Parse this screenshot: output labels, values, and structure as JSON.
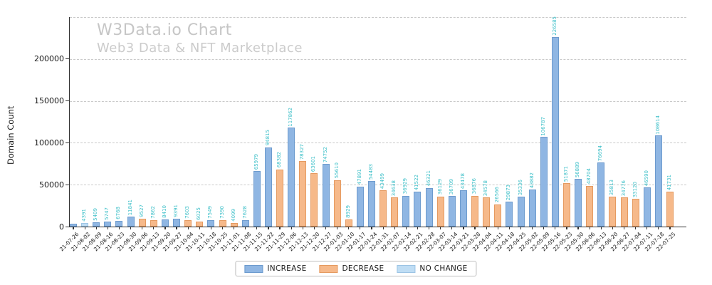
{
  "watermark": {
    "title": "W3Data.io Chart",
    "subtitle": "Web3 Data & NFT Marketplace"
  },
  "chart_data": {
    "type": "bar",
    "title": "W3Data.io Chart",
    "subtitle": "Web3 Data & NFT Marketplace",
    "xlabel": "",
    "ylabel": "Domain Count",
    "yticks": [
      0,
      50000,
      100000,
      150000,
      200000
    ],
    "ylim": [
      0,
      250000
    ],
    "grid": {
      "axis": "y",
      "style": "dashed",
      "color": "#c9c9c9"
    },
    "value_label_color": "#3fc0c9",
    "legend": {
      "position": "lower center",
      "entries": [
        {
          "label": "INCREASE",
          "key": "increase",
          "fill": "#8fb6e3",
          "edge": "#6d9bce"
        },
        {
          "label": "DECREASE",
          "key": "decrease",
          "fill": "#f6b98a",
          "edge": "#e59a60"
        },
        {
          "label": "NO CHANGE",
          "key": "no_change",
          "fill": "#bfddf4",
          "edge": "#9cc4e4"
        }
      ]
    },
    "bars": [
      {
        "date": "21-07-26",
        "value": 3000,
        "change": "increase",
        "label": ""
      },
      {
        "date": "21-08-02",
        "value": 4391,
        "change": "no_change",
        "label": "4391"
      },
      {
        "date": "21-08-09",
        "value": 5409,
        "change": "increase",
        "label": "5409"
      },
      {
        "date": "21-08-16",
        "value": 5747,
        "change": "increase",
        "label": "5747"
      },
      {
        "date": "21-08-23",
        "value": 6768,
        "change": "increase",
        "label": "6768"
      },
      {
        "date": "21-08-30",
        "value": 11841,
        "change": "increase",
        "label": "11841"
      },
      {
        "date": "21-09-06",
        "value": 9527,
        "change": "decrease",
        "label": "9527"
      },
      {
        "date": "21-09-13",
        "value": 7862,
        "change": "decrease",
        "label": "7862"
      },
      {
        "date": "21-09-20",
        "value": 8410,
        "change": "increase",
        "label": "8410"
      },
      {
        "date": "21-09-27",
        "value": 9391,
        "change": "increase",
        "label": "9391"
      },
      {
        "date": "21-10-04",
        "value": 7603,
        "change": "decrease",
        "label": "7603"
      },
      {
        "date": "21-10-11",
        "value": 6025,
        "change": "decrease",
        "label": "6025"
      },
      {
        "date": "21-10-18",
        "value": 7549,
        "change": "increase",
        "label": "7549"
      },
      {
        "date": "21-10-25",
        "value": 7390,
        "change": "decrease",
        "label": "7390"
      },
      {
        "date": "21-11-01",
        "value": 4099,
        "change": "decrease",
        "label": "4099"
      },
      {
        "date": "21-11-08",
        "value": 7628,
        "change": "increase",
        "label": "7628"
      },
      {
        "date": "21-11-15",
        "value": 65979,
        "change": "increase",
        "label": "65979"
      },
      {
        "date": "21-11-22",
        "value": 94815,
        "change": "increase",
        "label": "94815"
      },
      {
        "date": "21-11-29",
        "value": 68382,
        "change": "decrease",
        "label": "68382"
      },
      {
        "date": "21-12-06",
        "value": 117862,
        "change": "increase",
        "label": "117862"
      },
      {
        "date": "21-12-13",
        "value": 78327,
        "change": "decrease",
        "label": "78327"
      },
      {
        "date": "21-12-20",
        "value": 63601,
        "change": "decrease",
        "label": "63601"
      },
      {
        "date": "21-12-27",
        "value": 74752,
        "change": "increase",
        "label": "74752"
      },
      {
        "date": "22-01-03",
        "value": 55610,
        "change": "decrease",
        "label": "55610"
      },
      {
        "date": "22-01-10",
        "value": 8929,
        "change": "decrease",
        "label": "8929"
      },
      {
        "date": "22-01-17",
        "value": 47891,
        "change": "increase",
        "label": "47891"
      },
      {
        "date": "22-01-24",
        "value": 54483,
        "change": "increase",
        "label": "54483"
      },
      {
        "date": "22-01-31",
        "value": 43499,
        "change": "decrease",
        "label": "43499"
      },
      {
        "date": "22-02-07",
        "value": 34638,
        "change": "decrease",
        "label": "34638"
      },
      {
        "date": "22-02-14",
        "value": 36929,
        "change": "increase",
        "label": "36929"
      },
      {
        "date": "22-02-21",
        "value": 41522,
        "change": "increase",
        "label": "41522"
      },
      {
        "date": "22-02-28",
        "value": 46321,
        "change": "increase",
        "label": "46321"
      },
      {
        "date": "22-03-07",
        "value": 36129,
        "change": "decrease",
        "label": "36129"
      },
      {
        "date": "22-03-14",
        "value": 36709,
        "change": "increase",
        "label": "36709"
      },
      {
        "date": "22-03-21",
        "value": 43478,
        "change": "increase",
        "label": "43478"
      },
      {
        "date": "22-03-28",
        "value": 36876,
        "change": "decrease",
        "label": "36876"
      },
      {
        "date": "22-04-04",
        "value": 34578,
        "change": "decrease",
        "label": "34578"
      },
      {
        "date": "22-04-11",
        "value": 26566,
        "change": "decrease",
        "label": "26566"
      },
      {
        "date": "22-04-18",
        "value": 29873,
        "change": "increase",
        "label": "29873"
      },
      {
        "date": "22-04-25",
        "value": 35336,
        "change": "increase",
        "label": "35336"
      },
      {
        "date": "22-05-02",
        "value": 43882,
        "change": "increase",
        "label": "43882"
      },
      {
        "date": "22-05-09",
        "value": 106787,
        "change": "increase",
        "label": "106787"
      },
      {
        "date": "22-05-16",
        "value": 226585,
        "change": "increase",
        "label": "226585"
      },
      {
        "date": "22-05-23",
        "value": 51871,
        "change": "decrease",
        "label": "51871"
      },
      {
        "date": "22-05-30",
        "value": 56889,
        "change": "increase",
        "label": "56889"
      },
      {
        "date": "22-06-06",
        "value": 48704,
        "change": "decrease",
        "label": "48704"
      },
      {
        "date": "22-06-13",
        "value": 76694,
        "change": "increase",
        "label": "76694"
      },
      {
        "date": "22-06-20",
        "value": 35813,
        "change": "decrease",
        "label": "35813"
      },
      {
        "date": "22-06-27",
        "value": 34776,
        "change": "decrease",
        "label": "34776"
      },
      {
        "date": "22-07-04",
        "value": 33120,
        "change": "decrease",
        "label": "33120"
      },
      {
        "date": "22-07-11",
        "value": 46590,
        "change": "increase",
        "label": "46590"
      },
      {
        "date": "22-07-18",
        "value": 108614,
        "change": "increase",
        "label": "108614"
      },
      {
        "date": "22-07-25",
        "value": 41731,
        "change": "decrease",
        "label": "41731"
      }
    ]
  }
}
